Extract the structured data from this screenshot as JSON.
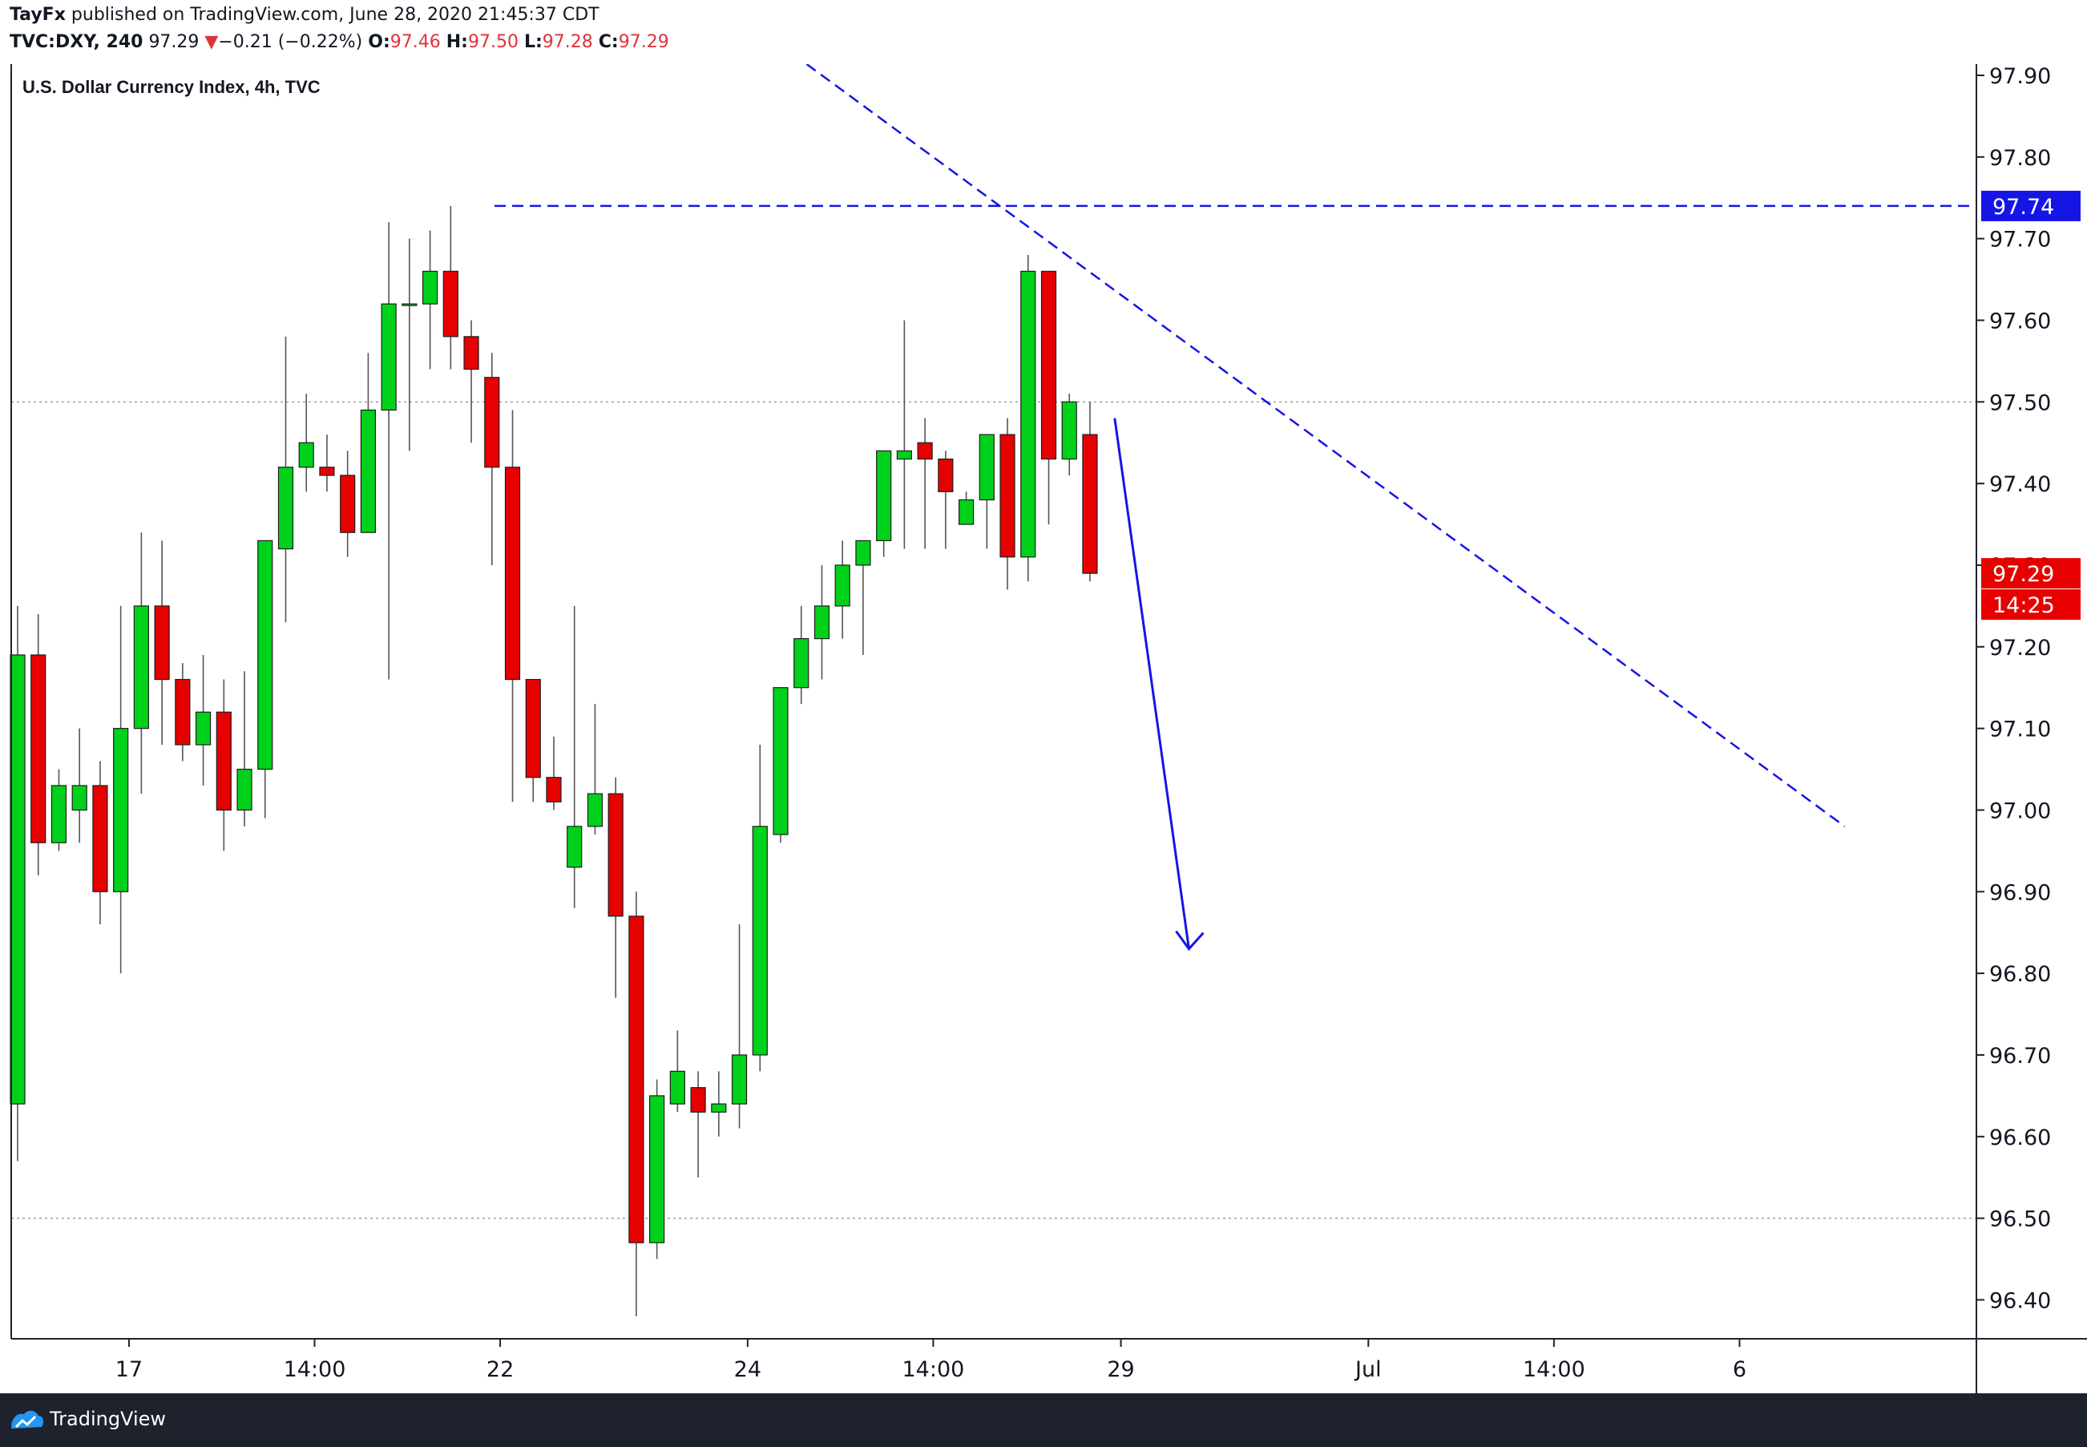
{
  "header": {
    "publisher": "TayFx",
    "published_text": "published on TradingView.com, June 28, 2020 21:45:37 CDT",
    "symbol": "TVC:DXY, 240",
    "last": "97.29",
    "change_arrow": "▼",
    "change": "−0.21 (−0.22%)",
    "o_label": "O:",
    "o_value": "97.46",
    "h_label": "H:",
    "h_value": "97.50",
    "l_label": "L:",
    "l_value": "97.28",
    "c_label": "C:",
    "c_value": "97.29"
  },
  "footer": {
    "brand": "TradingView",
    "logo_icon": "tradingview-logo-icon"
  },
  "chart_data": {
    "type": "candlestick",
    "title": "U.S. Dollar Currency Index, 4h, TVC",
    "ylim": [
      96.34,
      97.95
    ],
    "y_ticks": [
      "97.90",
      "97.80",
      "97.70",
      "97.60",
      "97.50",
      "97.40",
      "97.30",
      "97.20",
      "97.10",
      "97.00",
      "96.90",
      "96.80",
      "96.70",
      "96.60",
      "96.50",
      "96.40"
    ],
    "x_ticks": [
      {
        "label": "17",
        "index": 5.4
      },
      {
        "label": "14:00",
        "index": 14.4
      },
      {
        "label": "22",
        "index": 23.4
      },
      {
        "label": "24",
        "index": 35.4
      },
      {
        "label": "14:00",
        "index": 44.4
      },
      {
        "label": "29",
        "index": 53.5
      },
      {
        "label": "Jul",
        "index": 65.5
      },
      {
        "label": "14:00",
        "index": 74.5
      },
      {
        "label": "6",
        "index": 83.5
      }
    ],
    "colors": {
      "up": "#00d11a",
      "down": "#e60000",
      "wick": "#555555",
      "drawing": "#1515e6"
    },
    "candles": [
      {
        "o": 96.64,
        "h": 97.25,
        "l": 96.57,
        "c": 97.19
      },
      {
        "o": 97.19,
        "h": 97.24,
        "l": 96.92,
        "c": 96.96
      },
      {
        "o": 96.96,
        "h": 97.05,
        "l": 96.95,
        "c": 97.03
      },
      {
        "o": 97.0,
        "h": 97.1,
        "l": 96.96,
        "c": 97.03
      },
      {
        "o": 97.03,
        "h": 97.06,
        "l": 96.86,
        "c": 96.9
      },
      {
        "o": 96.9,
        "h": 97.25,
        "l": 96.8,
        "c": 97.1
      },
      {
        "o": 97.1,
        "h": 97.34,
        "l": 97.02,
        "c": 97.25
      },
      {
        "o": 97.25,
        "h": 97.33,
        "l": 97.08,
        "c": 97.16
      },
      {
        "o": 97.16,
        "h": 97.18,
        "l": 97.06,
        "c": 97.08
      },
      {
        "o": 97.08,
        "h": 97.19,
        "l": 97.03,
        "c": 97.12
      },
      {
        "o": 97.12,
        "h": 97.16,
        "l": 96.95,
        "c": 97.0
      },
      {
        "o": 97.0,
        "h": 97.17,
        "l": 96.98,
        "c": 97.05
      },
      {
        "o": 97.05,
        "h": 97.33,
        "l": 96.99,
        "c": 97.33
      },
      {
        "o": 97.32,
        "h": 97.58,
        "l": 97.23,
        "c": 97.42
      },
      {
        "o": 97.42,
        "h": 97.51,
        "l": 97.39,
        "c": 97.45
      },
      {
        "o": 97.42,
        "h": 97.46,
        "l": 97.39,
        "c": 97.41
      },
      {
        "o": 97.41,
        "h": 97.44,
        "l": 97.31,
        "c": 97.34
      },
      {
        "o": 97.34,
        "h": 97.56,
        "l": 97.34,
        "c": 97.49
      },
      {
        "o": 97.49,
        "h": 97.72,
        "l": 97.16,
        "c": 97.62
      },
      {
        "o": 97.62,
        "h": 97.7,
        "l": 97.44,
        "c": 97.62
      },
      {
        "o": 97.62,
        "h": 97.71,
        "l": 97.54,
        "c": 97.66
      },
      {
        "o": 97.66,
        "h": 97.74,
        "l": 97.54,
        "c": 97.58
      },
      {
        "o": 97.58,
        "h": 97.6,
        "l": 97.45,
        "c": 97.54
      },
      {
        "o": 97.53,
        "h": 97.56,
        "l": 97.3,
        "c": 97.42
      },
      {
        "o": 97.42,
        "h": 97.49,
        "l": 97.01,
        "c": 97.16
      },
      {
        "o": 97.16,
        "h": 97.16,
        "l": 97.01,
        "c": 97.04
      },
      {
        "o": 97.04,
        "h": 97.09,
        "l": 97.0,
        "c": 97.01
      },
      {
        "o": 96.93,
        "h": 97.25,
        "l": 96.88,
        "c": 96.98
      },
      {
        "o": 96.98,
        "h": 97.13,
        "l": 96.97,
        "c": 97.02
      },
      {
        "o": 97.02,
        "h": 97.04,
        "l": 96.77,
        "c": 96.87
      },
      {
        "o": 96.87,
        "h": 96.9,
        "l": 96.38,
        "c": 96.47
      },
      {
        "o": 96.47,
        "h": 96.67,
        "l": 96.45,
        "c": 96.65
      },
      {
        "o": 96.64,
        "h": 96.73,
        "l": 96.63,
        "c": 96.68
      },
      {
        "o": 96.66,
        "h": 96.68,
        "l": 96.55,
        "c": 96.63
      },
      {
        "o": 96.63,
        "h": 96.68,
        "l": 96.6,
        "c": 96.64
      },
      {
        "o": 96.64,
        "h": 96.86,
        "l": 96.61,
        "c": 96.7
      },
      {
        "o": 96.7,
        "h": 97.08,
        "l": 96.68,
        "c": 96.98
      },
      {
        "o": 96.97,
        "h": 97.15,
        "l": 96.96,
        "c": 97.15
      },
      {
        "o": 97.15,
        "h": 97.25,
        "l": 97.13,
        "c": 97.21
      },
      {
        "o": 97.21,
        "h": 97.3,
        "l": 97.16,
        "c": 97.25
      },
      {
        "o": 97.25,
        "h": 97.33,
        "l": 97.21,
        "c": 97.3
      },
      {
        "o": 97.3,
        "h": 97.33,
        "l": 97.19,
        "c": 97.33
      },
      {
        "o": 97.33,
        "h": 97.44,
        "l": 97.31,
        "c": 97.44
      },
      {
        "o": 97.43,
        "h": 97.6,
        "l": 97.32,
        "c": 97.44
      },
      {
        "o": 97.45,
        "h": 97.48,
        "l": 97.32,
        "c": 97.43
      },
      {
        "o": 97.43,
        "h": 97.44,
        "l": 97.32,
        "c": 97.39
      },
      {
        "o": 97.35,
        "h": 97.39,
        "l": 97.35,
        "c": 97.38
      },
      {
        "o": 97.38,
        "h": 97.46,
        "l": 97.32,
        "c": 97.46
      },
      {
        "o": 97.46,
        "h": 97.48,
        "l": 97.27,
        "c": 97.31
      },
      {
        "o": 97.31,
        "h": 97.68,
        "l": 97.28,
        "c": 97.66
      },
      {
        "o": 97.66,
        "h": 97.66,
        "l": 97.35,
        "c": 97.43
      },
      {
        "o": 97.43,
        "h": 97.51,
        "l": 97.41,
        "c": 97.5
      },
      {
        "o": 97.46,
        "h": 97.5,
        "l": 97.28,
        "c": 97.29
      }
    ],
    "drawings": {
      "resistance_level": 97.74,
      "trendline": {
        "from": {
          "index": 29.3,
          "price": 98.08
        },
        "to": {
          "index": 88.6,
          "price": 96.98
        }
      },
      "arrow": {
        "from": {
          "index": 53.2,
          "price": 97.48
        },
        "to": {
          "index": 56.8,
          "price": 96.83
        }
      }
    },
    "reference_lines": [
      97.5,
      96.5
    ],
    "price_labels": {
      "level_label": "97.74",
      "last_price": "97.29",
      "countdown": "14:25"
    }
  }
}
